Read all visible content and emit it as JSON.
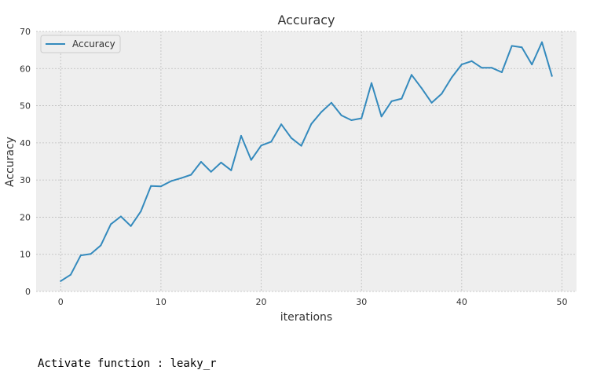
{
  "chart_data": {
    "type": "line",
    "title": "Accuracy",
    "xlabel": "iterations",
    "ylabel": "Accuracy",
    "xlim": [
      -2.45,
      51.45
    ],
    "ylim": [
      0,
      70
    ],
    "xticks": [
      0,
      10,
      20,
      30,
      40,
      50
    ],
    "yticks": [
      0,
      10,
      20,
      30,
      40,
      50,
      60,
      70
    ],
    "grid": true,
    "legend": "top-left",
    "series": [
      {
        "name": "Accuracy",
        "color": "#348abd",
        "x": [
          0,
          1,
          2,
          3,
          4,
          5,
          6,
          7,
          8,
          9,
          10,
          11,
          12,
          13,
          14,
          15,
          16,
          17,
          18,
          19,
          20,
          21,
          22,
          23,
          24,
          25,
          26,
          27,
          28,
          29,
          30,
          31,
          32,
          33,
          34,
          35,
          36,
          37,
          38,
          39,
          40,
          41,
          42,
          43,
          44,
          45,
          46,
          47,
          48,
          49
        ],
        "values": [
          2.8,
          4.5,
          9.7,
          10.1,
          12.4,
          18.1,
          20.2,
          17.6,
          21.6,
          28.4,
          28.3,
          29.7,
          30.5,
          31.4,
          34.9,
          32.2,
          34.7,
          32.6,
          41.9,
          35.4,
          39.3,
          40.3,
          45.0,
          41.3,
          39.2,
          45.1,
          48.3,
          50.8,
          47.4,
          46.1,
          46.6,
          56.1,
          47.1,
          51.2,
          51.9,
          58.3,
          54.7,
          50.8,
          53.2,
          57.6,
          61.1,
          62.0,
          60.2,
          60.2,
          59.0,
          66.1,
          65.7,
          61.1,
          67.1,
          58.0
        ]
      }
    ]
  },
  "output": {
    "text": "Activate function : leaky_r"
  }
}
